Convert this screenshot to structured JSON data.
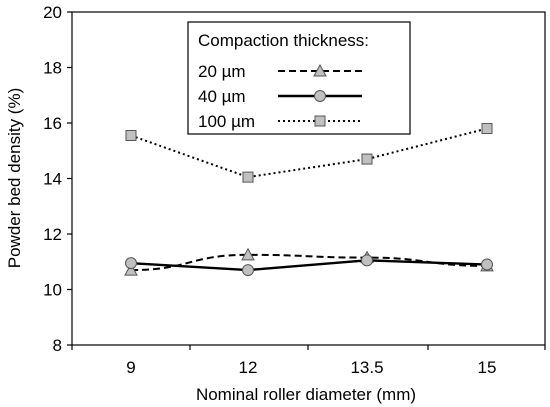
{
  "chart_data": {
    "type": "line",
    "categories": [
      "9",
      "12",
      "13.5",
      "15"
    ],
    "xlabel": "Nominal roller diameter (mm)",
    "ylabel": "Powder bed density (%)",
    "ylim": [
      8,
      20
    ],
    "yticks": [
      "8",
      "10",
      "12",
      "14",
      "16",
      "18",
      "20"
    ],
    "grid": false,
    "legend_title": "Compaction thickness:",
    "legend_position": "top-center",
    "series": [
      {
        "name": "20 µm",
        "marker": "triangle",
        "line_style": "dashed",
        "values": [
          10.7,
          11.25,
          11.15,
          10.85
        ]
      },
      {
        "name": "40 µm",
        "marker": "circle",
        "line_style": "solid",
        "values": [
          10.95,
          10.7,
          11.05,
          10.9
        ]
      },
      {
        "name": "100 µm",
        "marker": "square",
        "line_style": "dotted",
        "values": [
          15.55,
          14.05,
          14.7,
          15.8
        ]
      }
    ],
    "colors": {
      "line": "#000000",
      "marker_fill": "#c0c0c0",
      "marker_stroke": "#555555"
    }
  }
}
